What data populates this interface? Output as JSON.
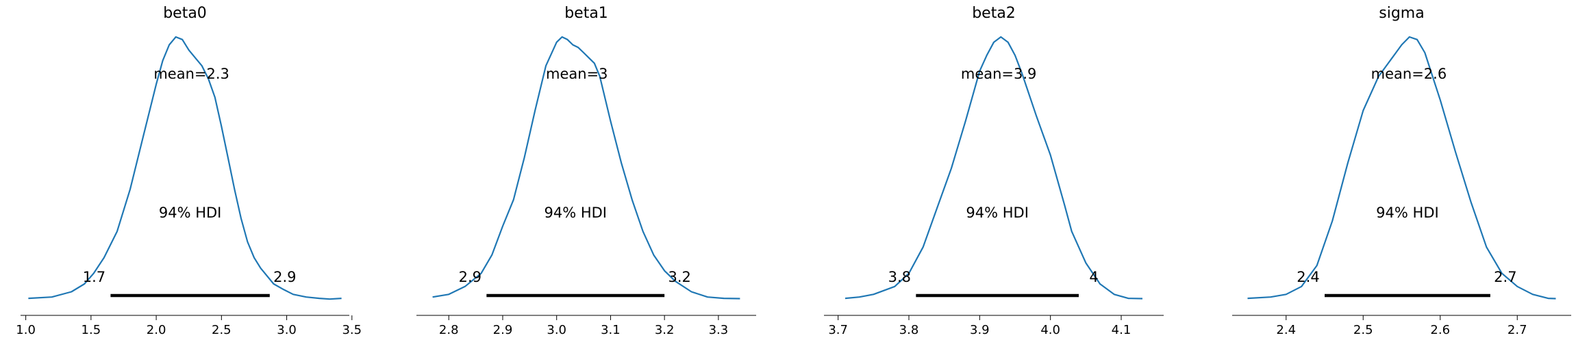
{
  "chart_data": [
    {
      "type": "line",
      "title": "beta0",
      "xlabel": "",
      "ylabel": "",
      "xlim": [
        0.96,
        3.48
      ],
      "xticks": [
        1.0,
        1.5,
        2.0,
        2.5,
        3.0,
        3.5
      ],
      "xtick_labels": [
        "1.0",
        "1.5",
        "2.0",
        "2.5",
        "3.0",
        "3.5"
      ],
      "grid": false,
      "color": "#1f77b4",
      "density": {
        "x": [
          1.02,
          1.2,
          1.35,
          1.45,
          1.52,
          1.6,
          1.7,
          1.8,
          1.9,
          2.0,
          2.05,
          2.1,
          2.15,
          2.2,
          2.25,
          2.3,
          2.35,
          2.4,
          2.45,
          2.5,
          2.55,
          2.6,
          2.65,
          2.7,
          2.75,
          2.8,
          2.9,
          2.97,
          3.05,
          3.15,
          3.25,
          3.33,
          3.42
        ],
        "y": [
          0.005,
          0.01,
          0.03,
          0.06,
          0.1,
          0.16,
          0.26,
          0.42,
          0.62,
          0.82,
          0.91,
          0.97,
          1.0,
          0.99,
          0.95,
          0.92,
          0.89,
          0.84,
          0.77,
          0.66,
          0.54,
          0.42,
          0.31,
          0.22,
          0.16,
          0.12,
          0.06,
          0.04,
          0.02,
          0.01,
          0.005,
          0.002,
          0.005
        ]
      },
      "mean_label": "mean=2.3",
      "hdi_label": "94% HDI",
      "hdi": [
        1.65,
        2.87
      ],
      "hdi_low_label": "1.7",
      "hdi_high_label": "2.9"
    },
    {
      "type": "line",
      "title": "beta1",
      "xlabel": "",
      "ylabel": "",
      "xlim": [
        2.74,
        3.37
      ],
      "xticks": [
        2.8,
        2.9,
        3.0,
        3.1,
        3.2,
        3.3
      ],
      "xtick_labels": [
        "2.8",
        "2.9",
        "3.0",
        "3.1",
        "3.2",
        "3.3"
      ],
      "grid": false,
      "color": "#1f77b4",
      "density": {
        "x": [
          2.77,
          2.8,
          2.83,
          2.86,
          2.88,
          2.9,
          2.92,
          2.94,
          2.96,
          2.98,
          3.0,
          3.01,
          3.02,
          3.03,
          3.04,
          3.05,
          3.06,
          3.07,
          3.08,
          3.1,
          3.12,
          3.14,
          3.16,
          3.18,
          3.2,
          3.22,
          3.25,
          3.28,
          3.31,
          3.34
        ],
        "y": [
          0.01,
          0.02,
          0.05,
          0.1,
          0.17,
          0.28,
          0.38,
          0.54,
          0.72,
          0.89,
          0.98,
          1.0,
          0.99,
          0.97,
          0.96,
          0.94,
          0.92,
          0.9,
          0.85,
          0.68,
          0.52,
          0.38,
          0.26,
          0.17,
          0.11,
          0.07,
          0.03,
          0.01,
          0.005,
          0.004
        ]
      },
      "mean_label": "mean=3",
      "hdi_label": "94% HDI",
      "hdi": [
        2.87,
        3.2
      ],
      "hdi_low_label": "2.9",
      "hdi_high_label": "3.2"
    },
    {
      "type": "line",
      "title": "beta2",
      "xlabel": "",
      "ylabel": "",
      "xlim": [
        3.68,
        4.16
      ],
      "xticks": [
        3.7,
        3.8,
        3.9,
        4.0,
        4.1
      ],
      "xtick_labels": [
        "3.7",
        "3.8",
        "3.9",
        "4.0",
        "4.1"
      ],
      "grid": false,
      "color": "#1f77b4",
      "density": {
        "x": [
          3.71,
          3.73,
          3.75,
          3.78,
          3.8,
          3.82,
          3.84,
          3.86,
          3.88,
          3.9,
          3.91,
          3.92,
          3.93,
          3.94,
          3.95,
          3.96,
          3.98,
          4.0,
          4.02,
          4.03,
          4.05,
          4.07,
          4.09,
          4.11,
          4.13
        ],
        "y": [
          0.005,
          0.01,
          0.02,
          0.05,
          0.1,
          0.2,
          0.35,
          0.5,
          0.68,
          0.87,
          0.93,
          0.98,
          1.0,
          0.98,
          0.93,
          0.86,
          0.7,
          0.55,
          0.36,
          0.26,
          0.14,
          0.06,
          0.02,
          0.005,
          0.004
        ]
      },
      "mean_label": "mean=3.9",
      "hdi_label": "94% HDI",
      "hdi": [
        3.81,
        4.04
      ],
      "hdi_low_label": "3.8",
      "hdi_high_label": "4"
    },
    {
      "type": "line",
      "title": "sigma",
      "xlabel": "",
      "ylabel": "",
      "xlim": [
        2.33,
        2.77
      ],
      "xticks": [
        2.4,
        2.5,
        2.6,
        2.7
      ],
      "xtick_labels": [
        "2.4",
        "2.5",
        "2.6",
        "2.7"
      ],
      "grid": false,
      "color": "#1f77b4",
      "density": {
        "x": [
          2.35,
          2.38,
          2.4,
          2.42,
          2.44,
          2.46,
          2.48,
          2.5,
          2.52,
          2.54,
          2.55,
          2.56,
          2.57,
          2.58,
          2.6,
          2.62,
          2.64,
          2.66,
          2.68,
          2.7,
          2.72,
          2.74,
          2.75
        ],
        "y": [
          0.005,
          0.01,
          0.02,
          0.05,
          0.13,
          0.3,
          0.52,
          0.72,
          0.85,
          0.93,
          0.97,
          1.0,
          0.99,
          0.94,
          0.76,
          0.56,
          0.37,
          0.2,
          0.1,
          0.05,
          0.02,
          0.005,
          0.004
        ]
      },
      "mean_label": "mean=2.6",
      "hdi_label": "94% HDI",
      "hdi": [
        2.45,
        2.665
      ],
      "hdi_low_label": "2.4",
      "hdi_high_label": "2.7"
    }
  ]
}
